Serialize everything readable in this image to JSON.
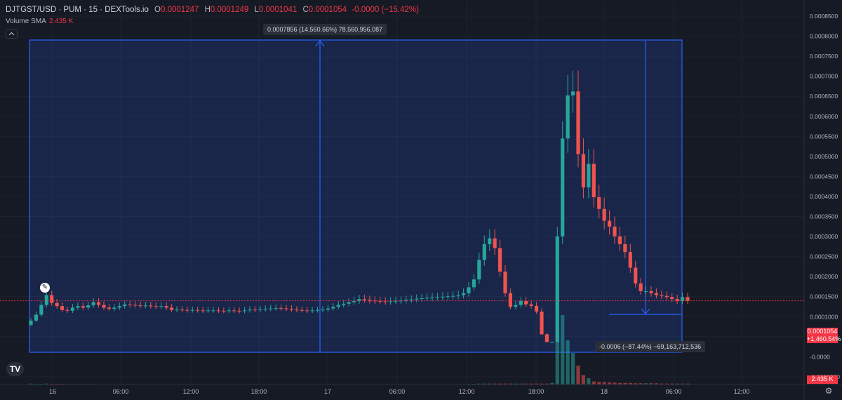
{
  "legend": {
    "title": "DJTGST/USD · PUM · 15 · DEXTools.io",
    "o_label": "O",
    "o_value": "0.0001247",
    "h_label": "H",
    "h_value": "0.0001249",
    "l_label": "L",
    "l_value": "0.0001041",
    "c_label": "C",
    "c_value": "0.0001054",
    "change": "-0.0000 (−15.42%)"
  },
  "volume": {
    "label": "Volume SMA",
    "value": "2.435 K"
  },
  "measure": {
    "top_label": "0.0007856 (14,560.66%) 78,560,956,087",
    "bottom_label": "-0.0006 (−87.44%) −69,163,712,536"
  },
  "price_axis": {
    "labels": [
      "0.0008500",
      "0.0008000",
      "0.0007500",
      "0.0007000",
      "0.0006500",
      "0.0006000",
      "0.0005500",
      "0.0005000",
      "0.0004500",
      "0.0004000",
      "0.0003500",
      "0.0003000",
      "0.0002500",
      "0.0002000",
      "0.0001500",
      "0.0001000",
      "0.0000500",
      "-0.0000",
      "-0.0000500"
    ],
    "current_price": "0.0001054",
    "current_change": "+1,460.54%",
    "volume_tag": "2.435 K"
  },
  "time_axis": {
    "labels": [
      "16",
      "06:00",
      "12:00",
      "18:00",
      "17",
      "06:00",
      "12:00",
      "18:00",
      "18",
      "06:00",
      "12:00"
    ]
  },
  "colors": {
    "up": "#26a69a",
    "down": "#ef5350",
    "measure": "#2962ff",
    "background": "#161a25"
  },
  "chart_data": {
    "type": "candlestick",
    "title": "DJTGST/USD",
    "ylim": [
      -6e-05,
      0.00087
    ],
    "series": [
      {
        "name": "DJTGST/USD",
        "close": [
          5.5e-05,
          7e-05,
          9.5e-05,
          0.00012,
          0.0001,
          9.2e-05,
          8.2e-05,
          8e-05,
          8.8e-05,
          9.2e-05,
          8.8e-05,
          9.4e-05,
          0.000102,
          9.5e-05,
          8.8e-05,
          8.5e-05,
          8.8e-05,
          9.2e-05,
          9.6e-05,
          9.5e-05,
          9.4e-05,
          9.3e-05,
          9.35e-05,
          9.2e-05,
          9.1e-05,
          9.2e-05,
          8.8e-05,
          8.2e-05,
          8.3e-05,
          8.2e-05,
          8.1e-05,
          8.2e-05,
          8.1e-05,
          8e-05,
          8.1e-05,
          8.1e-05,
          8e-05,
          7.9e-05,
          8.1e-05,
          8e-05,
          7.9e-05,
          8.1e-05,
          8.3e-05,
          8.2e-05,
          8.4e-05,
          8.5e-05,
          8.6e-05,
          8.7e-05,
          8.6e-05,
          8.5e-05,
          8.3e-05,
          8.2e-05,
          8.1e-05,
          8e-05,
          8.1e-05,
          8.2e-05,
          8.3e-05,
          8.6e-05,
          9e-05,
          9.5e-05,
          9.8e-05,
          0.000102,
          0.000105,
          0.00011,
          0.000108,
          0.000106,
          0.000105,
          0.000104,
          0.000103,
          0.000104,
          0.000105,
          0.000106,
          0.000108,
          0.000109,
          0.000111,
          0.000112,
          0.000113,
          0.000114,
          0.000115,
          0.000116,
          0.000117,
          0.000118,
          0.00012,
          0.000125,
          0.00014,
          0.00016,
          0.00021,
          0.00025,
          0.000265,
          0.00024,
          0.00018,
          0.000125,
          9e-05,
          9.5e-05,
          0.000105,
          9.65e-05,
          9.25e-05,
          7.8e-05,
          2e-05,
          0.0,
          0.0,
          0.00027,
          0.00052,
          0.00063,
          0.00064,
          0.00048,
          0.000395,
          0.000455,
          0.00037,
          0.00034,
          0.00031,
          0.000295,
          0.00027,
          0.00025,
          0.00023,
          0.00019,
          0.00015,
          0.00013,
          0.00013,
          0.000125,
          0.00012,
          0.000118,
          0.000115,
          0.00011,
          0.000105,
          0.000115,
          0.0001054
        ]
      }
    ],
    "volume": [
      0.3,
      0.2,
      0.2,
      0.3,
      0.2,
      0.2,
      0.2,
      0.15,
      0.15,
      0.15,
      0.15,
      0.15,
      0.15,
      0.1,
      0.1,
      0.1,
      0.1,
      0.1,
      0.1,
      0.1,
      0.1,
      0.1,
      0.1,
      0.1,
      0.1,
      0.1,
      0.1,
      0.1,
      0.1,
      0.1,
      0.1,
      0.1,
      0.1,
      0.1,
      0.1,
      0.1,
      0.1,
      0.1,
      0.1,
      0.1,
      0.1,
      0.1,
      0.1,
      0.1,
      0.1,
      0.1,
      0.1,
      0.1,
      0.1,
      0.1,
      0.1,
      0.1,
      0.1,
      0.1,
      0.1,
      0.1,
      0.1,
      0.1,
      0.1,
      0.1,
      0.1,
      0.1,
      0.1,
      0.1,
      0.1,
      0.1,
      0.1,
      0.1,
      0.1,
      0.1,
      0.1,
      0.1,
      0.1,
      0.1,
      0.1,
      0.1,
      0.1,
      0.1,
      0.1,
      0.1,
      0.1,
      0.1,
      0.1,
      0.1,
      0.15,
      0.2,
      0.3,
      0.3,
      0.3,
      0.3,
      0.3,
      0.3,
      0.3,
      0.3,
      0.3,
      0.3,
      0.3,
      0.3,
      0.3,
      0.3,
      0.5,
      30,
      22,
      14,
      10,
      6,
      3,
      2,
      1,
      0.8,
      0.8,
      0.7,
      0.6,
      0.5,
      0.5,
      0.5,
      0.4,
      0.4,
      0.4,
      0.4,
      0.4,
      0.3,
      0.3,
      0.3,
      0.3,
      0.3,
      0.3
    ]
  }
}
